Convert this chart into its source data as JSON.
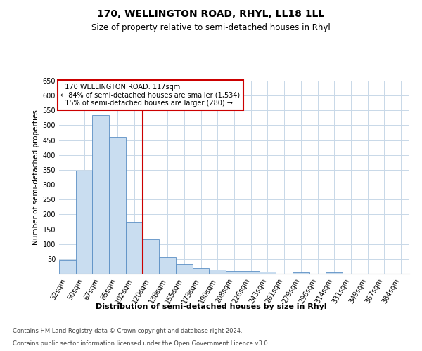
{
  "title": "170, WELLINGTON ROAD, RHYL, LL18 1LL",
  "subtitle": "Size of property relative to semi-detached houses in Rhyl",
  "xlabel": "Distribution of semi-detached houses by size in Rhyl",
  "ylabel": "Number of semi-detached properties",
  "bar_labels": [
    "32sqm",
    "50sqm",
    "67sqm",
    "85sqm",
    "102sqm",
    "120sqm",
    "138sqm",
    "155sqm",
    "173sqm",
    "190sqm",
    "208sqm",
    "226sqm",
    "243sqm",
    "261sqm",
    "279sqm",
    "296sqm",
    "314sqm",
    "331sqm",
    "349sqm",
    "367sqm",
    "384sqm"
  ],
  "bar_values": [
    45,
    348,
    535,
    462,
    175,
    115,
    57,
    33,
    18,
    15,
    10,
    10,
    8,
    0,
    5,
    0,
    5,
    0,
    0,
    0,
    0
  ],
  "bar_color": "#c9ddf0",
  "bar_edge_color": "#5b8fc4",
  "vline_color": "#cc0000",
  "annotation_box_color": "#ffffff",
  "annotation_box_edge": "#cc0000",
  "property_line_label": "170 WELLINGTON ROAD: 117sqm",
  "pct_smaller": 84,
  "count_smaller": 1534,
  "pct_larger": 15,
  "count_larger": 280,
  "ylim": [
    0,
    650
  ],
  "yticks": [
    0,
    50,
    100,
    150,
    200,
    250,
    300,
    350,
    400,
    450,
    500,
    550,
    600,
    650
  ],
  "footer1": "Contains HM Land Registry data © Crown copyright and database right 2024.",
  "footer2": "Contains public sector information licensed under the Open Government Licence v3.0.",
  "bg_color": "#ffffff",
  "grid_color": "#c8d8e8",
  "title_fontsize": 10,
  "subtitle_fontsize": 8.5,
  "ylabel_fontsize": 7.5,
  "xlabel_fontsize": 8,
  "tick_fontsize": 7,
  "footer_fontsize": 6,
  "annot_fontsize": 7
}
